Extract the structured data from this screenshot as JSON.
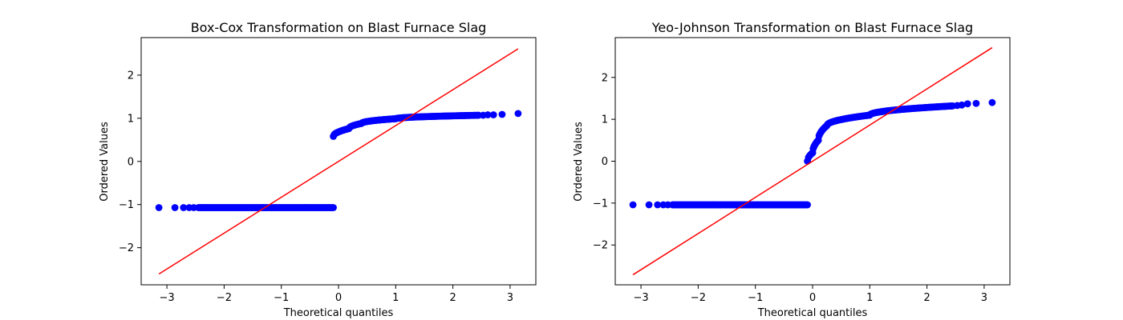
{
  "chart_data": [
    {
      "type": "scatter",
      "title": "Box-Cox Transformation on Blast Furnace Slag",
      "xlabel": "Theoretical quantiles",
      "ylabel": "Ordered Values",
      "xlim": [
        -3.45,
        3.45
      ],
      "ylim": [
        -2.86,
        2.87
      ],
      "xticks": [
        -3,
        -2,
        -1,
        0,
        1,
        2,
        3
      ],
      "xtick_labels": [
        "−3",
        "−2",
        "−1",
        "0",
        "1",
        "2",
        "3"
      ],
      "yticks": [
        -2,
        -1,
        0,
        1,
        2
      ],
      "ytick_labels": [
        "−2",
        "−1",
        "0",
        "1",
        "2"
      ],
      "grid": false,
      "series": [
        {
          "kind": "points",
          "color": "#0000ff",
          "segments": [
            {
              "x": [
                -3.14,
                -2.86,
                -2.71,
                -2.61,
                -2.53
              ],
              "y": [
                -1.07,
                -1.07,
                -1.07,
                -1.07,
                -1.07
              ]
            },
            {
              "x_from": -2.45,
              "x_to": -0.09,
              "count": 150,
              "y_from": -1.07,
              "y_to": -1.07
            },
            {
              "x_from": -0.09,
              "x_to": 0.18,
              "count": 18,
              "y_from": 0.58,
              "y_to": 0.76
            },
            {
              "x_from": 0.18,
              "x_to": 0.4,
              "count": 12,
              "y_from": 0.76,
              "y_to": 0.88
            },
            {
              "x_from": 0.4,
              "x_to": 1.0,
              "count": 40,
              "y_from": 0.88,
              "y_to": 0.99
            },
            {
              "x_from": 1.0,
              "x_to": 2.45,
              "count": 90,
              "y_from": 0.99,
              "y_to": 1.07
            },
            {
              "x": [
                2.53,
                2.61,
                2.71,
                2.86,
                3.14
              ],
              "y": [
                1.07,
                1.08,
                1.08,
                1.09,
                1.11
              ]
            }
          ]
        },
        {
          "kind": "fit-line",
          "color": "#ff0000",
          "x": [
            -3.14,
            3.14
          ],
          "y": [
            -2.61,
            2.61
          ]
        }
      ]
    },
    {
      "type": "scatter",
      "title": "Yeo-Johnson Transformation on Blast Furnace Slag",
      "xlabel": "Theoretical quantiles",
      "ylabel": "Ordered Values",
      "xlim": [
        -3.45,
        3.45
      ],
      "ylim": [
        -2.95,
        2.95
      ],
      "xticks": [
        -3,
        -2,
        -1,
        0,
        1,
        2,
        3
      ],
      "xtick_labels": [
        "−3",
        "−2",
        "−1",
        "0",
        "1",
        "2",
        "3"
      ],
      "yticks": [
        -2,
        -1,
        0,
        1,
        2
      ],
      "ytick_labels": [
        "−2",
        "−1",
        "0",
        "1",
        "2"
      ],
      "grid": false,
      "series": [
        {
          "kind": "points",
          "color": "#0000ff",
          "segments": [
            {
              "x": [
                -3.14,
                -2.86,
                -2.71,
                -2.61,
                -2.53
              ],
              "y": [
                -1.04,
                -1.04,
                -1.04,
                -1.04,
                -1.04
              ]
            },
            {
              "x_from": -2.45,
              "x_to": -0.09,
              "count": 150,
              "y_from": -1.04,
              "y_to": -1.04
            },
            {
              "x_from": -0.09,
              "x_to": 0.0,
              "count": 6,
              "y_from": 0.0,
              "y_to": 0.2
            },
            {
              "x_from": 0.0,
              "x_to": 0.1,
              "count": 10,
              "y_from": 0.2,
              "y_to": 0.5
            },
            {
              "x_from": 0.1,
              "x_to": 0.25,
              "count": 12,
              "y_from": 0.5,
              "y_to": 0.85
            },
            {
              "x_from": 0.25,
              "x_to": 1.0,
              "count": 45,
              "y_from": 0.85,
              "y_to": 1.1
            },
            {
              "x_from": 1.0,
              "x_to": 2.45,
              "count": 90,
              "y_from": 1.1,
              "y_to": 1.32
            },
            {
              "x": [
                2.53,
                2.61,
                2.71,
                2.86,
                3.14
              ],
              "y": [
                1.33,
                1.34,
                1.37,
                1.38,
                1.4
              ]
            }
          ]
        },
        {
          "kind": "fit-line",
          "color": "#ff0000",
          "x": [
            -3.14,
            3.14
          ],
          "y": [
            -2.71,
            2.71
          ]
        }
      ]
    }
  ]
}
